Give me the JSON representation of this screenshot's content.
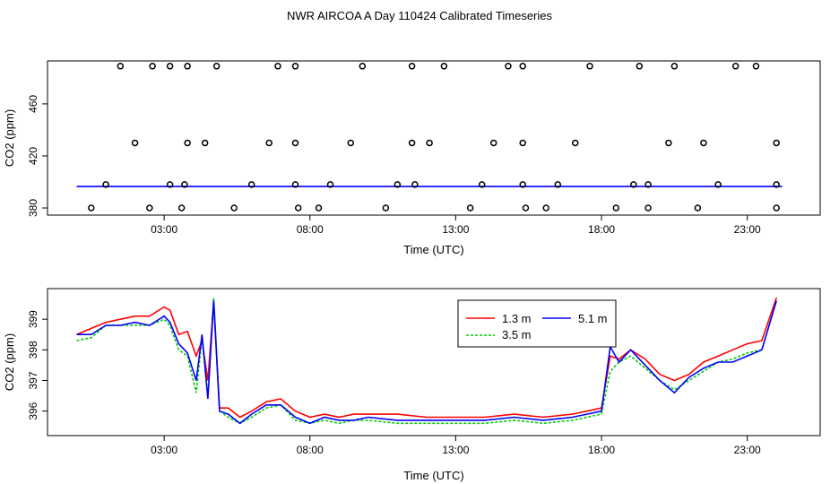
{
  "title": "NWR AIRCOA A  Day 110424  Calibrated Timeseries",
  "chart_data": [
    {
      "type": "scatter",
      "xlabel": "Time (UTC)",
      "ylabel": "CO2 (ppm)",
      "xlim": [
        -1.0,
        25.5
      ],
      "ylim": [
        374.5,
        493.0
      ],
      "x_ticks": [
        3,
        8,
        13,
        18,
        23
      ],
      "x_tick_labels": [
        "03:00",
        "08:00",
        "13:00",
        "18:00",
        "23:00"
      ],
      "y_ticks": [
        380,
        420,
        460
      ],
      "y_tick_labels": [
        "380",
        "420",
        "460"
      ],
      "grid": false,
      "reference_points": {
        "marker": "open-circle",
        "x": [
          1.5,
          2.6,
          3.2,
          3.8,
          4.8,
          6.9,
          7.5,
          9.8,
          11.5,
          12.6,
          14.8,
          15.3,
          17.6,
          19.3,
          20.5,
          22.6,
          23.3,
          2.0,
          6.6,
          7.5,
          9.4,
          11.5,
          12.1,
          14.3,
          15.3,
          17.1,
          20.3,
          21.5,
          24.0,
          3.8,
          4.4,
          1.0,
          3.2,
          3.7,
          6.0,
          7.5,
          8.7,
          11.0,
          11.6,
          13.9,
          15.3,
          16.5,
          19.1,
          19.6,
          22.0,
          24.0,
          0.5,
          2.5,
          3.6,
          5.4,
          7.6,
          8.3,
          10.6,
          13.5,
          15.4,
          16.1,
          18.5,
          19.6,
          21.3,
          24.0
        ],
        "y": [
          489,
          489,
          489,
          489,
          489,
          489,
          489,
          489,
          489,
          489,
          489,
          489,
          489,
          489,
          489,
          489,
          489,
          430,
          430,
          430,
          430,
          430,
          430,
          430,
          430,
          430,
          430,
          430,
          430,
          430,
          430,
          398,
          398,
          398,
          398,
          398,
          398,
          398,
          398,
          398,
          398,
          398,
          398,
          398,
          398,
          398,
          380,
          380,
          380,
          380,
          380,
          380,
          380,
          380,
          380,
          380,
          380,
          380,
          380,
          380
        ]
      },
      "series_flat_level": 396.5
    },
    {
      "type": "line",
      "xlabel": "Time (UTC)",
      "ylabel": "CO2 (ppm)",
      "xlim": [
        -1.0,
        25.5
      ],
      "ylim": [
        395.2,
        400.0
      ],
      "x_ticks": [
        3,
        8,
        13,
        18,
        23
      ],
      "x_tick_labels": [
        "03:00",
        "08:00",
        "13:00",
        "18:00",
        "23:00"
      ],
      "y_ticks": [
        396,
        397,
        398,
        399
      ],
      "y_tick_labels": [
        "396",
        "397",
        "398",
        "399"
      ],
      "grid": false,
      "legend_position": "top-right",
      "x": [
        0.0,
        0.5,
        1.0,
        1.5,
        2.0,
        2.5,
        3.0,
        3.2,
        3.5,
        3.8,
        4.1,
        4.3,
        4.5,
        4.7,
        4.9,
        5.2,
        5.6,
        6.0,
        6.5,
        7.0,
        7.5,
        8.0,
        8.5,
        9.0,
        9.5,
        10.0,
        11.0,
        12.0,
        13.0,
        14.0,
        15.0,
        16.0,
        17.0,
        17.5,
        18.0,
        18.3,
        18.6,
        19.0,
        19.5,
        20.0,
        20.5,
        21.0,
        21.5,
        22.0,
        22.5,
        23.0,
        23.5,
        24.0
      ],
      "series": [
        {
          "name": "1.3 m",
          "color": "#ff0000",
          "values": [
            398.5,
            398.7,
            398.9,
            399.0,
            399.1,
            399.1,
            399.4,
            399.3,
            398.5,
            398.6,
            397.8,
            398.3,
            397.0,
            399.6,
            396.1,
            396.1,
            395.8,
            396.0,
            396.3,
            396.4,
            396.0,
            395.8,
            395.9,
            395.8,
            395.9,
            395.9,
            395.9,
            395.8,
            395.8,
            395.8,
            395.9,
            395.8,
            395.9,
            396.0,
            396.1,
            397.8,
            397.7,
            398.0,
            397.7,
            397.2,
            397.0,
            397.2,
            397.6,
            397.8,
            398.0,
            398.2,
            398.3,
            399.7
          ]
        },
        {
          "name": "3.5 m",
          "color": "#00cc00",
          "values": [
            398.3,
            398.4,
            398.8,
            398.8,
            398.8,
            398.8,
            399.0,
            398.8,
            398.0,
            397.8,
            396.6,
            398.4,
            396.5,
            399.7,
            396.0,
            395.8,
            395.6,
            395.8,
            396.1,
            396.2,
            395.7,
            395.6,
            395.7,
            395.6,
            395.7,
            395.7,
            395.6,
            395.6,
            395.6,
            395.6,
            395.7,
            395.6,
            395.7,
            395.8,
            395.9,
            397.3,
            397.6,
            397.8,
            397.4,
            397.0,
            396.7,
            397.0,
            397.3,
            397.6,
            397.7,
            397.9,
            398.0,
            399.6
          ]
        },
        {
          "name": "5.1 m",
          "color": "#0000ff",
          "values": [
            398.5,
            398.5,
            398.8,
            398.8,
            398.9,
            398.8,
            399.1,
            398.9,
            398.2,
            397.9,
            397.0,
            398.5,
            396.4,
            399.6,
            396.0,
            395.9,
            395.6,
            395.9,
            396.2,
            396.2,
            395.8,
            395.6,
            395.8,
            395.7,
            395.7,
            395.8,
            395.7,
            395.7,
            395.7,
            395.7,
            395.8,
            395.7,
            395.8,
            395.9,
            396.0,
            398.1,
            397.6,
            398.0,
            397.5,
            397.0,
            396.6,
            397.1,
            397.4,
            397.6,
            397.6,
            397.8,
            398.0,
            399.6
          ]
        }
      ]
    }
  ]
}
